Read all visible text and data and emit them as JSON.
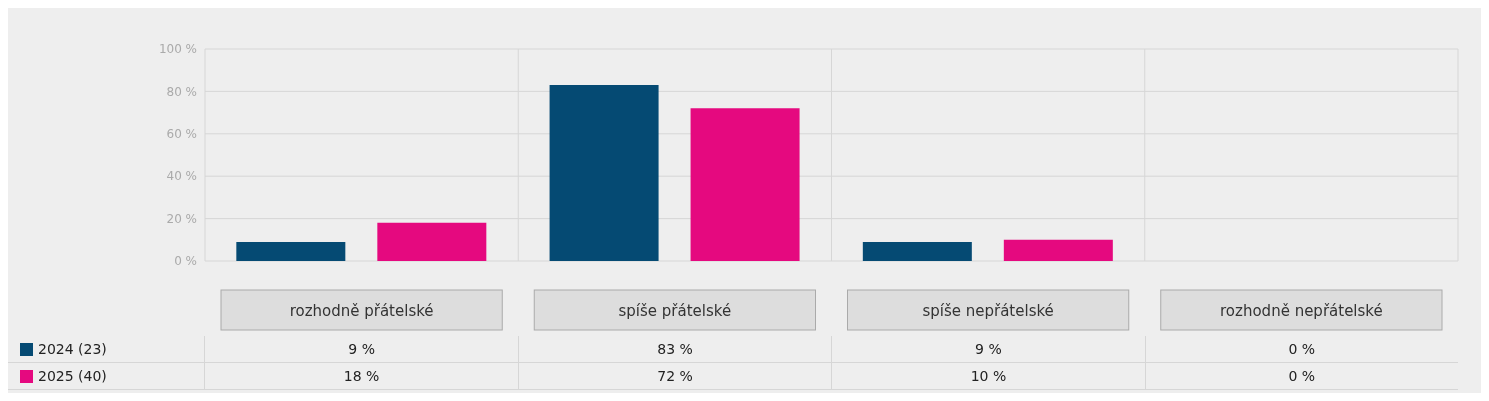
{
  "chart_data": {
    "type": "bar",
    "categories": [
      "rozhodně přátelské",
      "spíše přátelské",
      "spíše nepřátelské",
      "rozhodně nepřátelské"
    ],
    "series": [
      {
        "name": "2024 (23)",
        "color": "#054a73",
        "values": [
          9,
          83,
          9,
          0
        ],
        "value_labels": [
          "9 %",
          "83 %",
          "9 %",
          "0 %"
        ]
      },
      {
        "name": "2025 (40)",
        "color": "#e5097f",
        "values": [
          18,
          72,
          10,
          0
        ],
        "value_labels": [
          "18 %",
          "72 %",
          "10 %",
          "0 %"
        ]
      }
    ],
    "ylim": [
      0,
      100
    ],
    "yticks": [
      {
        "value": 0,
        "label": "0 %"
      },
      {
        "value": 20,
        "label": "20 %"
      },
      {
        "value": 40,
        "label": "40 %"
      },
      {
        "value": 60,
        "label": "60 %"
      },
      {
        "value": 80,
        "label": "80 %"
      },
      {
        "value": 100,
        "label": "100 %"
      }
    ],
    "grid": true,
    "legend": "bottom left"
  }
}
